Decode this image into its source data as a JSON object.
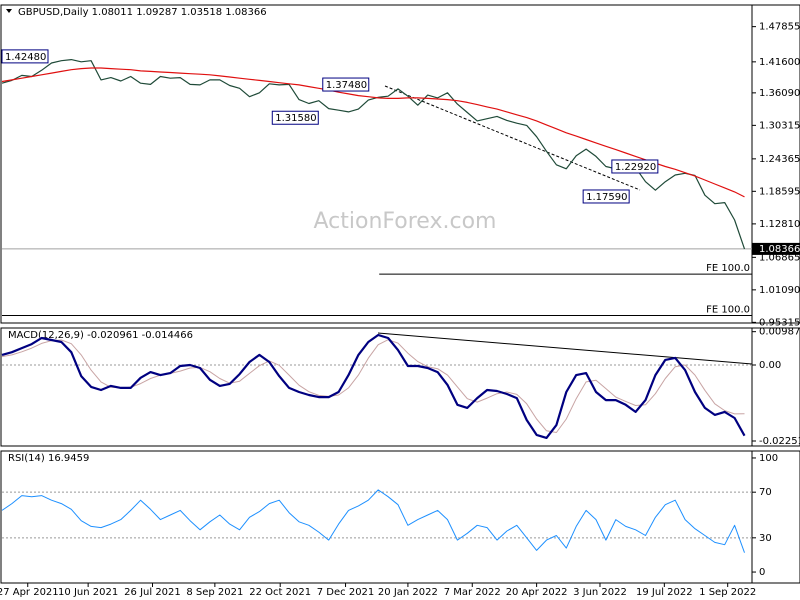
{
  "watermark": "ActionForex.com",
  "chart_data": [
    {
      "type": "line",
      "title": "GBPUSD,Daily 1.08011 1.09287 1.03518 1.08366",
      "xlim": [
        0,
        75.25
      ],
      "ylim": [
        0.952,
        1.517
      ],
      "yticks": [
        1.47855,
        {
          "value": 1.416,
          "label": "1.41600"
        },
        {
          "value": 1.3609,
          "label": "1.36090"
        },
        1.30315,
        1.24365,
        1.18595,
        {
          "value": 1.1281,
          "label": "1.12810"
        },
        1.06865,
        {
          "value": 1.0109,
          "label": "1.01090"
        },
        0.95315
      ],
      "last_price": 1.08366,
      "levels": [
        {
          "value": 1.0388,
          "label": "FE 100.0",
          "from": 38.1
        },
        {
          "value": 0.9654,
          "label": "FE 100.0",
          "from": 0
        }
      ],
      "annotations": [
        {
          "x": 0,
          "value": 1.4248,
          "label": "1.42480"
        },
        {
          "x": 32.4,
          "value": 1.3748,
          "label": "1.37480"
        },
        {
          "x": 27.3,
          "value": 1.3158,
          "label": "1.31580"
        },
        {
          "x": 61.6,
          "value": 1.2292,
          "label": "1.22920"
        },
        {
          "x": 58.7,
          "value": 1.1759,
          "label": "1.17590"
        }
      ],
      "series": [
        {
          "color": "#1f4a38",
          "width": 1.2,
          "values": [
            1.378,
            1.383,
            1.392,
            1.39,
            1.401,
            1.414,
            1.418,
            1.42,
            1.416,
            1.418,
            1.384,
            1.388,
            1.382,
            1.39,
            1.378,
            1.376,
            1.39,
            1.387,
            1.388,
            1.376,
            1.375,
            1.384,
            1.384,
            1.374,
            1.369,
            1.354,
            1.361,
            1.377,
            1.375,
            1.376,
            1.349,
            1.342,
            1.347,
            1.333,
            1.33,
            1.327,
            1.332,
            1.348,
            1.353,
            1.355,
            1.368,
            1.355,
            1.339,
            1.357,
            1.352,
            1.361,
            1.341,
            1.326,
            1.311,
            1.315,
            1.319,
            1.312,
            1.307,
            1.303,
            1.283,
            1.257,
            1.233,
            1.226,
            1.249,
            1.261,
            1.248,
            1.23,
            1.226,
            1.226,
            1.228,
            1.203,
            1.188,
            1.203,
            1.215,
            1.218,
            1.214,
            1.179,
            1.164,
            1.166,
            1.135,
            1.08366
          ]
        },
        {
          "color": "#e01010",
          "width": 1.2,
          "values": [
            1.381,
            1.384,
            1.387,
            1.39,
            1.393,
            1.396,
            1.399,
            1.402,
            1.404,
            1.405,
            1.405,
            1.404,
            1.403,
            1.402,
            1.4,
            1.399,
            1.398,
            1.397,
            1.396,
            1.395,
            1.394,
            1.393,
            1.391,
            1.389,
            1.387,
            1.385,
            1.383,
            1.381,
            1.379,
            1.377,
            1.375,
            1.372,
            1.369,
            1.366,
            1.362,
            1.359,
            1.356,
            1.354,
            1.352,
            1.351,
            1.351,
            1.352,
            1.352,
            1.351,
            1.35,
            1.349,
            1.347,
            1.344,
            1.34,
            1.336,
            1.332,
            1.327,
            1.322,
            1.317,
            1.311,
            1.304,
            1.297,
            1.29,
            1.284,
            1.278,
            1.272,
            1.266,
            1.26,
            1.254,
            1.248,
            1.242,
            1.236,
            1.23,
            1.225,
            1.219,
            1.213,
            1.206,
            1.199,
            1.192,
            1.185,
            1.176
          ]
        }
      ]
    },
    {
      "type": "line",
      "title": "MACD(12,26,9) -0.020961 -0.014466",
      "xlim": [
        0,
        75.25
      ],
      "ylim": [
        -0.024,
        0.01096
      ],
      "yticks": [
        0.009872,
        {
          "value": 0,
          "label": "0.00"
        },
        -0.022516
      ],
      "levels": [
        0
      ],
      "series": [
        {
          "color": "#c8a4a4",
          "width": 1,
          "values": [
            0.0025,
            0.003,
            0.0039,
            0.005,
            0.0064,
            0.0072,
            0.0074,
            0.0063,
            0.003,
            -0.0015,
            -0.005,
            -0.0066,
            -0.0068,
            -0.0066,
            -0.0055,
            -0.004,
            -0.003,
            -0.0025,
            -0.0018,
            -0.0009,
            -0.0007,
            -0.002,
            -0.004,
            -0.0054,
            -0.0048,
            -0.0025,
            -0.0002,
            0.0012,
            -0.0001,
            -0.003,
            -0.006,
            -0.0079,
            -0.009,
            -0.0093,
            -0.0089,
            -0.0068,
            -0.003,
            0.002,
            0.006,
            0.0075,
            0.0065,
            0.0035,
            0.001,
            -0.0005,
            -0.0011,
            -0.003,
            -0.0065,
            -0.01,
            -0.011,
            -0.0098,
            -0.0085,
            -0.008,
            -0.0087,
            -0.0115,
            -0.016,
            -0.0195,
            -0.02,
            -0.016,
            -0.01,
            -0.005,
            -0.0045,
            -0.007,
            -0.0095,
            -0.0108,
            -0.012,
            -0.0118,
            -0.0085,
            -0.004,
            -0.0005,
            0.0,
            -0.003,
            -0.0075,
            -0.0115,
            -0.0135,
            -0.0145,
            -0.014466
          ]
        },
        {
          "color": "#000080",
          "width": 2.2,
          "values": [
            0.003,
            0.0038,
            0.005,
            0.0062,
            0.008,
            0.0074,
            0.0068,
            0.0038,
            -0.0033,
            -0.0065,
            -0.0074,
            -0.0062,
            -0.0068,
            -0.0068,
            -0.0038,
            -0.0021,
            -0.003,
            -0.0024,
            -0.0003,
            0,
            -0.0009,
            -0.0044,
            -0.0062,
            -0.0056,
            -0.0027,
            0.0009,
            0.003,
            0.0009,
            -0.0033,
            -0.0068,
            -0.008,
            -0.0089,
            -0.0095,
            -0.0095,
            -0.008,
            -0.003,
            0.003,
            0.0068,
            0.0089,
            0.008,
            0.0044,
            -0.0003,
            -0.0003,
            -0.0009,
            -0.0021,
            -0.0059,
            -0.0118,
            -0.0127,
            -0.0098,
            -0.0074,
            -0.0077,
            -0.0086,
            -0.0098,
            -0.0163,
            -0.0207,
            -0.0216,
            -0.0178,
            -0.008,
            -0.003,
            -0.0024,
            -0.008,
            -0.0104,
            -0.0104,
            -0.0118,
            -0.0139,
            -0.0104,
            -0.003,
            0.0015,
            0.0021,
            -0.0015,
            -0.008,
            -0.0127,
            -0.0148,
            -0.0139,
            -0.0157,
            -0.020961
          ]
        }
      ]
    },
    {
      "type": "line",
      "title": "RSI(14) 16.9459",
      "xlim": [
        0,
        75.25
      ],
      "ylim": [
        -9.6,
        106.1
      ],
      "yticks": [
        100,
        70,
        30,
        0
      ],
      "levels": [
        70,
        30
      ],
      "xticks": [
        {
          "value": 2.6,
          "label": "27 Apr 2021"
        },
        {
          "value": 8.7,
          "label": "10 Jun 2021"
        },
        {
          "value": 15.2,
          "label": "26 Jul 2021"
        },
        {
          "value": 21.5,
          "label": "8 Sep 2021"
        },
        {
          "value": 28.1,
          "label": "22 Oct 2021"
        },
        {
          "value": 34.7,
          "label": "7 Dec 2021"
        },
        {
          "value": 41,
          "label": "20 Jan 2022"
        },
        {
          "value": 47.5,
          "label": "7 Mar 2022"
        },
        {
          "value": 54,
          "label": "20 Apr 2022"
        },
        {
          "value": 60.4,
          "label": "3 Jun 2022"
        },
        {
          "value": 66.9,
          "label": "19 Jul 2022"
        },
        {
          "value": 73.3,
          "label": "1 Sep 2022"
        }
      ],
      "series": [
        {
          "color": "#1e90ff",
          "width": 1,
          "values": [
            54,
            60,
            67,
            66,
            67,
            63,
            60,
            55,
            45,
            40,
            39,
            42,
            46,
            54,
            63,
            55,
            46,
            50,
            54,
            45,
            37,
            44,
            50,
            42,
            37,
            48,
            53,
            60,
            63,
            52,
            44,
            41,
            35,
            28,
            42,
            54,
            58,
            63,
            72,
            66,
            59,
            41,
            46,
            50,
            54,
            46,
            28,
            34,
            41,
            39,
            28,
            36,
            41,
            30,
            19,
            28,
            32,
            21,
            40,
            54,
            46,
            28,
            46,
            40,
            37,
            32,
            48,
            59,
            63,
            46,
            38,
            32,
            26,
            24,
            41,
            16.9459
          ]
        }
      ]
    }
  ]
}
